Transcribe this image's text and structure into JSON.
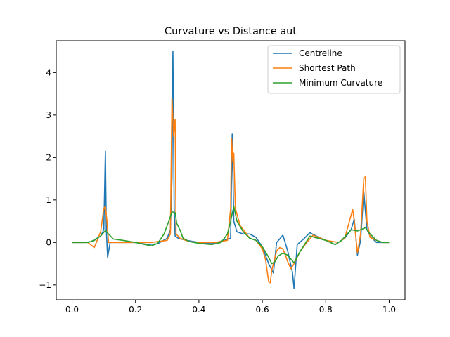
{
  "chart_data": {
    "type": "line",
    "title": "Curvature vs Distance aut",
    "xlabel": "",
    "ylabel": "",
    "xlim": [
      -0.05,
      1.05
    ],
    "ylim": [
      -1.35,
      4.75
    ],
    "xticks": [
      0.0,
      0.2,
      0.4,
      0.6,
      0.8,
      1.0
    ],
    "xtick_labels": [
      "0.0",
      "0.2",
      "0.4",
      "0.6",
      "0.8",
      "1.0"
    ],
    "yticks": [
      -1,
      0,
      1,
      2,
      3,
      4
    ],
    "ytick_labels": [
      "−1",
      "0",
      "1",
      "2",
      "3",
      "4"
    ],
    "grid": false,
    "legend_position": "top-right",
    "series": [
      {
        "name": "Centreline",
        "color": "#1f77b4",
        "points": [
          [
            0.0,
            0.0
          ],
          [
            0.04,
            0.0
          ],
          [
            0.06,
            0.02
          ],
          [
            0.09,
            0.15
          ],
          [
            0.1,
            0.3
          ],
          [
            0.105,
            2.15
          ],
          [
            0.108,
            0.3
          ],
          [
            0.112,
            -0.35
          ],
          [
            0.12,
            0.0
          ],
          [
            0.15,
            0.0
          ],
          [
            0.2,
            0.0
          ],
          [
            0.24,
            -0.05
          ],
          [
            0.27,
            -0.03
          ],
          [
            0.3,
            0.1
          ],
          [
            0.31,
            0.3
          ],
          [
            0.315,
            1.5
          ],
          [
            0.318,
            4.5
          ],
          [
            0.322,
            0.8
          ],
          [
            0.325,
            0.15
          ],
          [
            0.335,
            0.1
          ],
          [
            0.36,
            0.05
          ],
          [
            0.4,
            0.0
          ],
          [
            0.44,
            -0.03
          ],
          [
            0.48,
            0.05
          ],
          [
            0.5,
            0.1
          ],
          [
            0.505,
            2.55
          ],
          [
            0.51,
            0.5
          ],
          [
            0.52,
            0.25
          ],
          [
            0.54,
            0.2
          ],
          [
            0.56,
            0.2
          ],
          [
            0.58,
            0.12
          ],
          [
            0.6,
            -0.1
          ],
          [
            0.62,
            -0.5
          ],
          [
            0.635,
            -0.72
          ],
          [
            0.645,
            0.0
          ],
          [
            0.665,
            0.17
          ],
          [
            0.68,
            -0.2
          ],
          [
            0.695,
            -0.7
          ],
          [
            0.7,
            -1.08
          ],
          [
            0.71,
            -0.05
          ],
          [
            0.73,
            0.08
          ],
          [
            0.75,
            0.23
          ],
          [
            0.77,
            0.15
          ],
          [
            0.8,
            0.05
          ],
          [
            0.83,
            -0.05
          ],
          [
            0.86,
            0.1
          ],
          [
            0.88,
            0.3
          ],
          [
            0.89,
            0.55
          ],
          [
            0.9,
            -0.3
          ],
          [
            0.91,
            0.05
          ],
          [
            0.92,
            1.2
          ],
          [
            0.93,
            0.3
          ],
          [
            0.94,
            0.15
          ],
          [
            0.96,
            0.0
          ],
          [
            0.98,
            0.0
          ],
          [
            1.0,
            0.0
          ]
        ]
      },
      {
        "name": "Shortest Path",
        "color": "#ff7f0e",
        "points": [
          [
            0.0,
            0.0
          ],
          [
            0.05,
            0.0
          ],
          [
            0.07,
            -0.12
          ],
          [
            0.09,
            0.25
          ],
          [
            0.1,
            0.8
          ],
          [
            0.105,
            0.85
          ],
          [
            0.11,
            0.5
          ],
          [
            0.115,
            0.0
          ],
          [
            0.15,
            0.0
          ],
          [
            0.2,
            0.0
          ],
          [
            0.25,
            0.0
          ],
          [
            0.3,
            0.05
          ],
          [
            0.31,
            0.2
          ],
          [
            0.315,
            3.4
          ],
          [
            0.32,
            2.5
          ],
          [
            0.325,
            2.9
          ],
          [
            0.328,
            0.2
          ],
          [
            0.34,
            0.1
          ],
          [
            0.37,
            0.02
          ],
          [
            0.4,
            0.0
          ],
          [
            0.45,
            0.0
          ],
          [
            0.49,
            0.05
          ],
          [
            0.5,
            0.8
          ],
          [
            0.503,
            2.45
          ],
          [
            0.507,
            1.9
          ],
          [
            0.51,
            2.1
          ],
          [
            0.515,
            0.8
          ],
          [
            0.53,
            0.4
          ],
          [
            0.56,
            0.1
          ],
          [
            0.58,
            0.05
          ],
          [
            0.6,
            -0.15
          ],
          [
            0.61,
            -0.4
          ],
          [
            0.62,
            -0.92
          ],
          [
            0.625,
            -0.95
          ],
          [
            0.63,
            -0.65
          ],
          [
            0.645,
            -0.2
          ],
          [
            0.655,
            -0.12
          ],
          [
            0.665,
            -0.15
          ],
          [
            0.68,
            -0.45
          ],
          [
            0.69,
            -0.62
          ],
          [
            0.7,
            -0.5
          ],
          [
            0.72,
            -0.2
          ],
          [
            0.74,
            0.0
          ],
          [
            0.76,
            0.17
          ],
          [
            0.8,
            0.05
          ],
          [
            0.84,
            0.0
          ],
          [
            0.86,
            0.1
          ],
          [
            0.885,
            0.78
          ],
          [
            0.89,
            0.5
          ],
          [
            0.9,
            -0.25
          ],
          [
            0.91,
            0.2
          ],
          [
            0.92,
            1.5
          ],
          [
            0.925,
            1.55
          ],
          [
            0.93,
            0.5
          ],
          [
            0.94,
            0.12
          ],
          [
            0.96,
            0.05
          ],
          [
            0.98,
            0.0
          ],
          [
            1.0,
            0.0
          ]
        ]
      },
      {
        "name": "Minimum Curvature",
        "color": "#2ca02c",
        "points": [
          [
            0.0,
            0.0
          ],
          [
            0.05,
            0.0
          ],
          [
            0.07,
            0.05
          ],
          [
            0.09,
            0.15
          ],
          [
            0.105,
            0.28
          ],
          [
            0.115,
            0.2
          ],
          [
            0.13,
            0.08
          ],
          [
            0.16,
            0.05
          ],
          [
            0.2,
            0.0
          ],
          [
            0.23,
            -0.05
          ],
          [
            0.25,
            -0.08
          ],
          [
            0.27,
            -0.02
          ],
          [
            0.29,
            0.2
          ],
          [
            0.305,
            0.5
          ],
          [
            0.315,
            0.72
          ],
          [
            0.325,
            0.7
          ],
          [
            0.33,
            0.45
          ],
          [
            0.34,
            0.3
          ],
          [
            0.35,
            0.1
          ],
          [
            0.37,
            0.02
          ],
          [
            0.4,
            -0.02
          ],
          [
            0.44,
            -0.05
          ],
          [
            0.47,
            0.0
          ],
          [
            0.49,
            0.2
          ],
          [
            0.5,
            0.5
          ],
          [
            0.51,
            0.85
          ],
          [
            0.52,
            0.5
          ],
          [
            0.54,
            0.25
          ],
          [
            0.56,
            0.1
          ],
          [
            0.58,
            0.05
          ],
          [
            0.6,
            -0.1
          ],
          [
            0.62,
            -0.35
          ],
          [
            0.63,
            -0.5
          ],
          [
            0.64,
            -0.45
          ],
          [
            0.65,
            -0.32
          ],
          [
            0.665,
            -0.25
          ],
          [
            0.68,
            -0.3
          ],
          [
            0.7,
            -0.48
          ],
          [
            0.72,
            -0.2
          ],
          [
            0.75,
            0.15
          ],
          [
            0.8,
            0.05
          ],
          [
            0.83,
            -0.05
          ],
          [
            0.85,
            0.05
          ],
          [
            0.88,
            0.3
          ],
          [
            0.9,
            0.27
          ],
          [
            0.92,
            0.33
          ],
          [
            0.925,
            0.35
          ],
          [
            0.94,
            0.2
          ],
          [
            0.96,
            0.05
          ],
          [
            0.98,
            0.0
          ],
          [
            1.0,
            0.0
          ]
        ]
      }
    ]
  }
}
